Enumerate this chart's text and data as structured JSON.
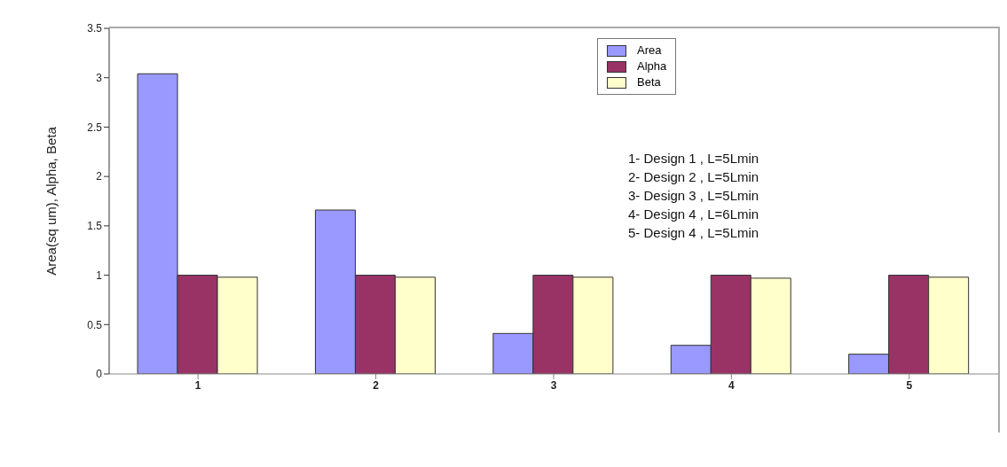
{
  "chart_data": {
    "type": "bar",
    "ylabel": "Area(sq um), Alpha, Beta",
    "categories": [
      "1",
      "2",
      "3",
      "4",
      "5"
    ],
    "series": [
      {
        "name": "Area",
        "color": "#9999ff",
        "values": [
          3.04,
          1.66,
          0.41,
          0.29,
          0.2
        ]
      },
      {
        "name": "Alpha",
        "color": "#993366",
        "values": [
          1.0,
          1.0,
          1.0,
          1.0,
          1.0
        ]
      },
      {
        "name": "Beta",
        "color": "#ffffcc",
        "values": [
          0.98,
          0.98,
          0.98,
          0.97,
          0.98
        ]
      }
    ],
    "ylim": [
      0,
      3.5
    ],
    "yticks": [
      0,
      0.5,
      1,
      1.5,
      2,
      2.5,
      3,
      3.5
    ],
    "grid": false,
    "legend": "top right",
    "annotations": [
      "1- Design 1 , L=5Lmin",
      "2- Design 2 , L=5Lmin",
      "3- Design 3 , L=5Lmin",
      "4- Design 4 , L=6Lmin",
      "5- Design 4 , L=5Lmin"
    ]
  }
}
